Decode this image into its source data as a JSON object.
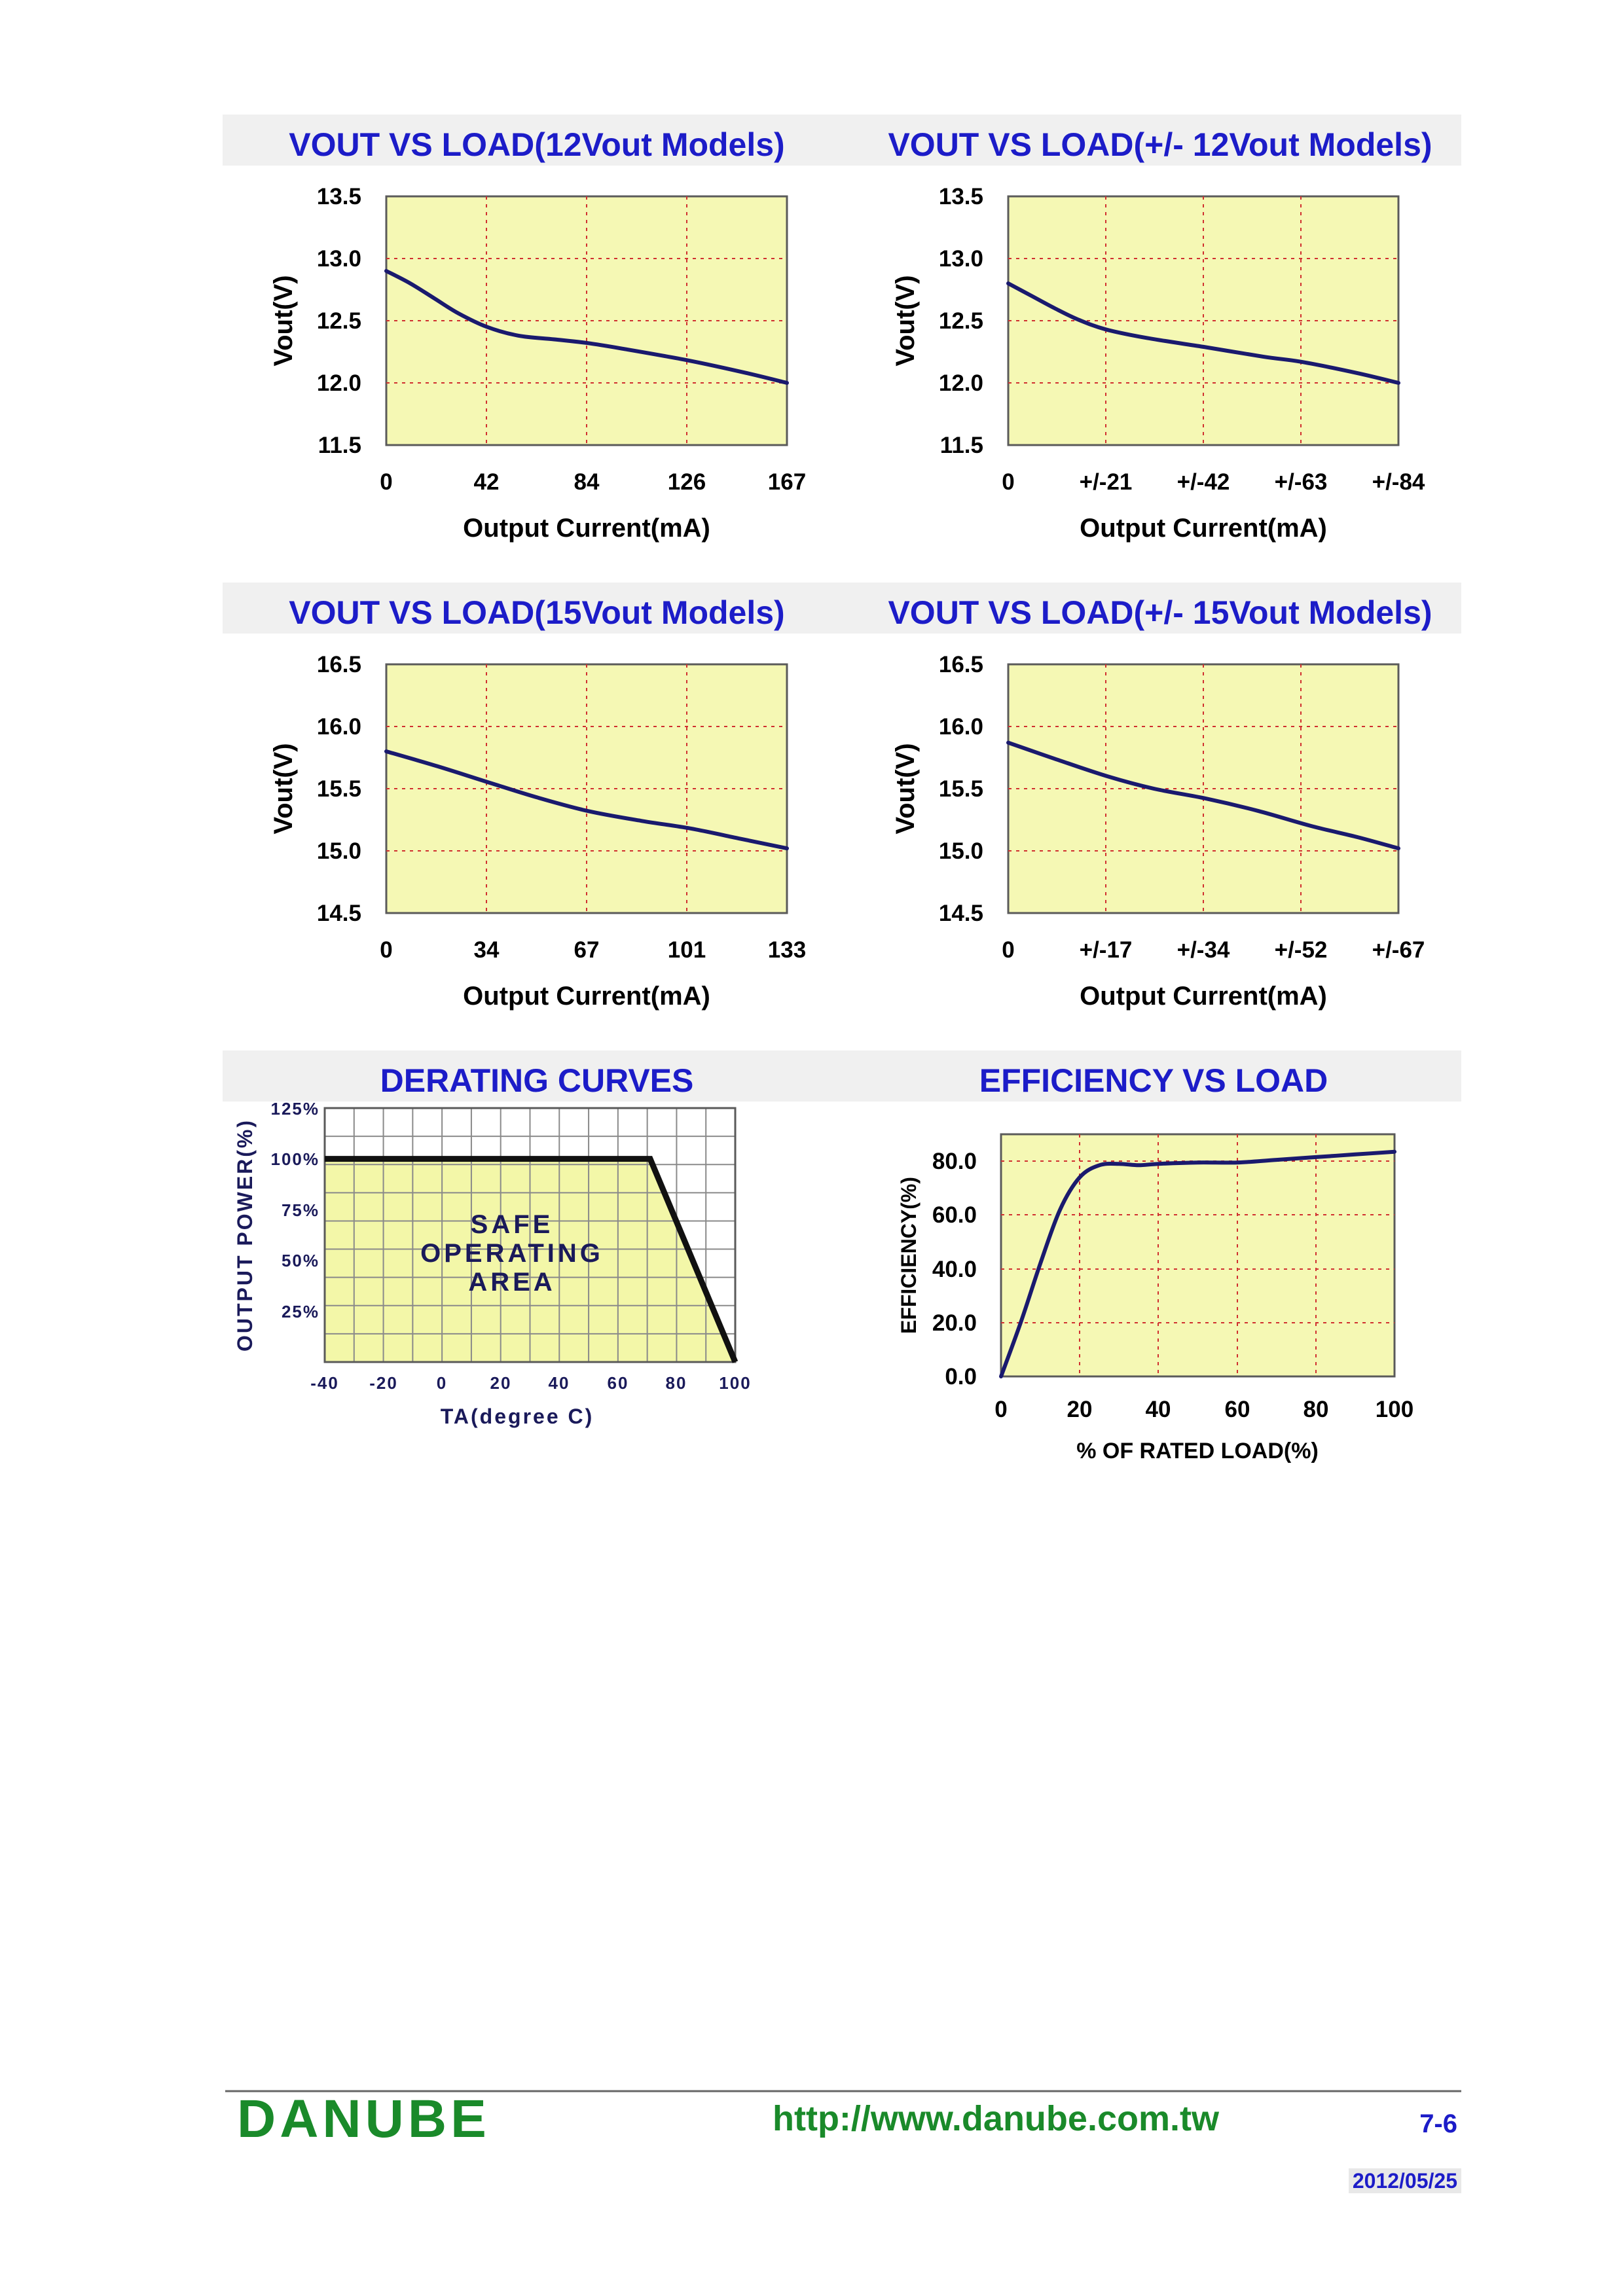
{
  "colors": {
    "title": "#1c1cc8",
    "title_band": "#f0f0f0",
    "plot_fill": "#f5f8b4",
    "curve": "#1a1a6e",
    "grid_red": "#d03030",
    "grid_gray": "#8a8a8a",
    "derating_fill": "#f3f7a8",
    "derating_line": "#111111",
    "footer_green": "#1a8a2a"
  },
  "chart_data": [
    {
      "id": "c1",
      "type": "line",
      "title": "VOUT VS LOAD(12Vout Models)",
      "xlabel": "Output Current(mA)",
      "ylabel": "Vout(V)",
      "x_ticks": [
        "0",
        "42",
        "84",
        "126",
        "167"
      ],
      "y_ticks": [
        "13.5",
        "13.0",
        "12.5",
        "12.0",
        "11.5"
      ],
      "xlim": [
        0,
        167
      ],
      "ylim": [
        11.5,
        13.5
      ],
      "series": [
        {
          "x": [
            0,
            10,
            20,
            30,
            42,
            55,
            70,
            84,
            100,
            126,
            150,
            167
          ],
          "y": [
            12.9,
            12.8,
            12.68,
            12.56,
            12.45,
            12.38,
            12.35,
            12.32,
            12.27,
            12.18,
            12.08,
            12.0
          ]
        }
      ]
    },
    {
      "id": "c2",
      "type": "line",
      "title": "VOUT VS LOAD(+/- 12Vout Models)",
      "xlabel": "Output Current(mA)",
      "ylabel": "Vout(V)",
      "x_ticks": [
        "0",
        "+/-21",
        "+/-42",
        "+/-63",
        "+/-84"
      ],
      "y_ticks": [
        "13.5",
        "13.0",
        "12.5",
        "12.0",
        "11.5"
      ],
      "xlim": [
        0,
        84
      ],
      "ylim": [
        11.5,
        13.5
      ],
      "series": [
        {
          "x": [
            0,
            5,
            10,
            15,
            21,
            30,
            42,
            55,
            63,
            75,
            84
          ],
          "y": [
            12.8,
            12.7,
            12.6,
            12.51,
            12.43,
            12.36,
            12.29,
            12.21,
            12.17,
            12.08,
            12.0
          ]
        }
      ]
    },
    {
      "id": "c3",
      "type": "line",
      "title": "VOUT VS LOAD(15Vout Models)",
      "xlabel": "Output Current(mA)",
      "ylabel": "Vout(V)",
      "x_ticks": [
        "0",
        "34",
        "67",
        "101",
        "133"
      ],
      "y_ticks": [
        "16.5",
        "16.0",
        "15.5",
        "15.0",
        "14.5"
      ],
      "xlim": [
        0,
        133
      ],
      "ylim": [
        14.5,
        16.5
      ],
      "series": [
        {
          "x": [
            0,
            17,
            34,
            50,
            67,
            85,
            101,
            117,
            133
          ],
          "y": [
            15.8,
            15.68,
            15.55,
            15.43,
            15.32,
            15.24,
            15.18,
            15.1,
            15.02
          ]
        }
      ]
    },
    {
      "id": "c4",
      "type": "line",
      "title": "VOUT VS LOAD(+/- 15Vout Models)",
      "xlabel": "Output Current(mA)",
      "ylabel": "Vout(V)",
      "x_ticks": [
        "0",
        "+/-17",
        "+/-34",
        "+/-52",
        "+/-67"
      ],
      "y_ticks": [
        "16.5",
        "16.0",
        "15.5",
        "15.0",
        "14.5"
      ],
      "xlim": [
        0,
        67
      ],
      "ylim": [
        14.5,
        16.5
      ],
      "series": [
        {
          "x": [
            0,
            8,
            17,
            25,
            34,
            43,
            52,
            60,
            67
          ],
          "y": [
            15.87,
            15.74,
            15.6,
            15.5,
            15.42,
            15.32,
            15.2,
            15.11,
            15.02
          ]
        }
      ]
    },
    {
      "id": "c5",
      "type": "line",
      "title": "DERATING CURVES",
      "xlabel": "TA(degree C)",
      "ylabel": "OUTPUT POWER(%)",
      "annotation": [
        "SAFE",
        "OPERATING",
        "AREA"
      ],
      "x_ticks": [
        "-40",
        "-20",
        "0",
        "20",
        "40",
        "60",
        "80",
        "100"
      ],
      "y_ticks": [
        "125%",
        "100%",
        "75%",
        "50%",
        "25%"
      ],
      "xlim": [
        -40,
        100
      ],
      "ylim": [
        0,
        125
      ],
      "grid": true,
      "series": [
        {
          "x": [
            -40,
            71,
            100
          ],
          "y": [
            100,
            100,
            0
          ]
        }
      ]
    },
    {
      "id": "c6",
      "type": "line",
      "title": "EFFICIENCY VS LOAD",
      "xlabel": "% OF RATED LOAD(%)",
      "ylabel": "EFFICIENCY(%)",
      "x_ticks": [
        "0",
        "20",
        "40",
        "60",
        "80",
        "100"
      ],
      "y_ticks": [
        "80.0",
        "60.0",
        "40.0",
        "20.0",
        "0.0"
      ],
      "xlim": [
        0,
        100
      ],
      "ylim": [
        0,
        90
      ],
      "series": [
        {
          "x": [
            0,
            5,
            10,
            15,
            20,
            25,
            30,
            35,
            40,
            50,
            60,
            70,
            80,
            90,
            100
          ],
          "y": [
            0,
            20,
            42,
            62,
            74,
            78.5,
            79,
            78.5,
            79,
            79.5,
            79.5,
            80.5,
            81.5,
            82.5,
            83.5
          ]
        }
      ]
    }
  ],
  "footer": {
    "logo": "DANUBE",
    "url": "http://www.danube.com.tw",
    "page_number": "7-6",
    "date": "2012/05/25"
  }
}
